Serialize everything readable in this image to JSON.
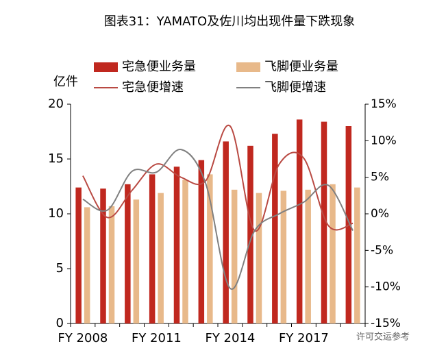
{
  "chart_data": {
    "type": "bar",
    "title": "图表31：YAMATO及佐川均出现件量下跌现象",
    "y_label": "亿件",
    "categories": [
      "FY 2008",
      null,
      null,
      "FY 2011",
      null,
      null,
      "FY 2014",
      null,
      null,
      "FY 2017",
      null,
      null
    ],
    "series": [
      {
        "name": "宅急便业务量",
        "color": "#c0281f",
        "type": "bar",
        "values": [
          12.4,
          12.3,
          12.7,
          13.6,
          14.3,
          14.9,
          16.6,
          16.2,
          17.3,
          18.6,
          18.4,
          18.0
        ]
      },
      {
        "name": "飞脚便业务量",
        "color": "#e8b98a",
        "type": "bar",
        "values": [
          10.6,
          10.7,
          11.3,
          11.9,
          13.1,
          13.6,
          12.2,
          11.9,
          12.1,
          12.2,
          12.7,
          12.4
        ]
      },
      {
        "name": "宅急便增速",
        "color": "#b94a43",
        "type": "line",
        "axis": "y2",
        "values": [
          5.2,
          -0.5,
          3.2,
          6.8,
          5.0,
          4.5,
          12.0,
          -2.3,
          6.8,
          7.6,
          -1.6,
          -1.3
        ]
      },
      {
        "name": "飞脚便增速",
        "color": "#808080",
        "type": "line",
        "axis": "y2",
        "values": [
          2.0,
          0.5,
          5.8,
          5.7,
          8.8,
          4.2,
          -10.2,
          -2.3,
          0.0,
          1.6,
          3.9,
          -2.3
        ]
      }
    ],
    "ylim": [
      0,
      20
    ],
    "yticks": [
      0,
      5,
      10,
      15,
      20
    ],
    "y2lim": [
      -15,
      15
    ],
    "y2ticks": [
      {
        "value": -15,
        "label": "-15%"
      },
      {
        "value": -10,
        "label": "-10%"
      },
      {
        "value": -5,
        "label": "-5%"
      },
      {
        "value": 0,
        "label": "0%"
      },
      {
        "value": 5,
        "label": "5%"
      },
      {
        "value": 10,
        "label": "10%"
      },
      {
        "value": 15,
        "label": "15%"
      }
    ],
    "watermark": "许可交运参考"
  }
}
